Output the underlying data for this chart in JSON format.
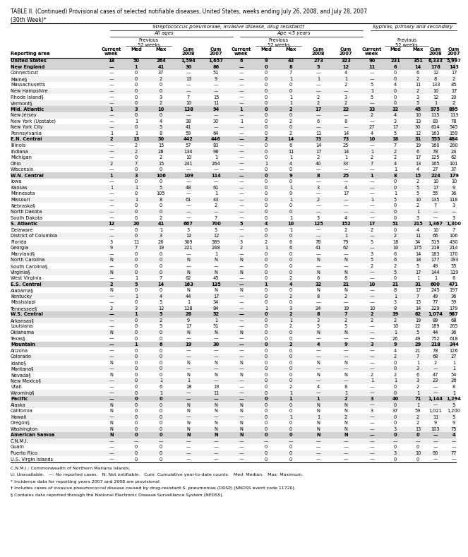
{
  "title_line1": "TABLE II. (Continued) Provisional cases of selected notifiable diseases, United States, weeks ending July 26, 2008, and July 28, 2007",
  "title_line2": "(30th Week)*",
  "col_group1": "Streptococcus pneumoniae, invasive disease, drug resistant†",
  "col_group2": "Syphilis, primary and secondary",
  "rows": [
    [
      "United States",
      "18",
      "50",
      "264",
      "1,594",
      "1,657",
      "6",
      "9",
      "43",
      "273",
      "323",
      "90",
      "231",
      "351",
      "6,333",
      "5,997"
    ],
    [
      "New England",
      "—",
      "1",
      "41",
      "30",
      "86",
      "—",
      "0",
      "8",
      "5",
      "12",
      "11",
      "6",
      "14",
      "176",
      "143"
    ],
    [
      "Connecticut",
      "—",
      "0",
      "37",
      "—",
      "51",
      "—",
      "0",
      "7",
      "—",
      "4",
      "—",
      "0",
      "6",
      "12",
      "17"
    ],
    [
      "Maine§",
      "—",
      "0",
      "2",
      "13",
      "9",
      "—",
      "0",
      "1",
      "1",
      "1",
      "—",
      "0",
      "2",
      "8",
      "2"
    ],
    [
      "Massachusetts",
      "—",
      "0",
      "0",
      "—",
      "—",
      "—",
      "0",
      "0",
      "—",
      "2",
      "5",
      "4",
      "11",
      "133",
      "85"
    ],
    [
      "New Hampshire",
      "—",
      "0",
      "0",
      "—",
      "—",
      "—",
      "0",
      "0",
      "—",
      "—",
      "1",
      "0",
      "2",
      "10",
      "17"
    ],
    [
      "Rhode Island§",
      "—",
      "0",
      "3",
      "7",
      "15",
      "—",
      "0",
      "1",
      "2",
      "3",
      "5",
      "0",
      "3",
      "12",
      "20"
    ],
    [
      "Vermont§",
      "—",
      "0",
      "2",
      "10",
      "11",
      "—",
      "0",
      "1",
      "2",
      "2",
      "—",
      "0",
      "5",
      "1",
      "2"
    ],
    [
      "Mid. Atlantic",
      "1",
      "3",
      "10",
      "138",
      "94",
      "1",
      "0",
      "2",
      "17",
      "22",
      "33",
      "32",
      "45",
      "975",
      "895"
    ],
    [
      "New Jersey",
      "—",
      "0",
      "0",
      "—",
      "—",
      "—",
      "0",
      "0",
      "—",
      "—",
      "2",
      "4",
      "10",
      "115",
      "113"
    ],
    [
      "New York (Upstate)",
      "—",
      "1",
      "4",
      "38",
      "30",
      "1",
      "0",
      "2",
      "6",
      "8",
      "—",
      "3",
      "13",
      "83",
      "78"
    ],
    [
      "New York City",
      "—",
      "0",
      "5",
      "41",
      "—",
      "—",
      "0",
      "0",
      "—",
      "—",
      "27",
      "17",
      "30",
      "614",
      "545"
    ],
    [
      "Pennsylvania",
      "1",
      "1",
      "8",
      "59",
      "64",
      "—",
      "0",
      "2",
      "11",
      "14",
      "4",
      "5",
      "12",
      "163",
      "159"
    ],
    [
      "E.N. Central",
      "2",
      "13",
      "50",
      "442",
      "446",
      "—",
      "2",
      "14",
      "73",
      "73",
      "10",
      "18",
      "31",
      "555",
      "484"
    ],
    [
      "Illinois",
      "—",
      "2",
      "15",
      "57",
      "83",
      "—",
      "0",
      "6",
      "14",
      "25",
      "—",
      "7",
      "19",
      "160",
      "260"
    ],
    [
      "Indiana",
      "—",
      "2",
      "28",
      "134",
      "98",
      "—",
      "0",
      "11",
      "17",
      "14",
      "1",
      "2",
      "6",
      "78",
      "24"
    ],
    [
      "Michigan",
      "—",
      "0",
      "2",
      "10",
      "1",
      "—",
      "0",
      "1",
      "2",
      "1",
      "2",
      "2",
      "17",
      "125",
      "62"
    ],
    [
      "Ohio",
      "2",
      "7",
      "15",
      "241",
      "264",
      "—",
      "1",
      "4",
      "40",
      "33",
      "7",
      "4",
      "13",
      "165",
      "101"
    ],
    [
      "Wisconsin",
      "—",
      "0",
      "0",
      "—",
      "—",
      "—",
      "0",
      "0",
      "—",
      "—",
      "—",
      "1",
      "4",
      "27",
      "37"
    ],
    [
      "W.N. Central",
      "1",
      "3",
      "106",
      "109",
      "114",
      "—",
      "0",
      "9",
      "8",
      "25",
      "1",
      "8",
      "15",
      "224",
      "179"
    ],
    [
      "Iowa",
      "—",
      "0",
      "0",
      "—",
      "—",
      "—",
      "0",
      "0",
      "—",
      "—",
      "—",
      "0",
      "2",
      "10",
      "10"
    ],
    [
      "Kansas",
      "1",
      "1",
      "5",
      "48",
      "61",
      "—",
      "0",
      "1",
      "3",
      "4",
      "—",
      "0",
      "5",
      "17",
      "9"
    ],
    [
      "Minnesota",
      "—",
      "0",
      "105",
      "—",
      "1",
      "—",
      "0",
      "9",
      "—",
      "17",
      "—",
      "1",
      "5",
      "55",
      "36"
    ],
    [
      "Missouri",
      "—",
      "1",
      "8",
      "61",
      "43",
      "—",
      "0",
      "1",
      "2",
      "—",
      "1",
      "5",
      "10",
      "135",
      "118"
    ],
    [
      "Nebraska§",
      "—",
      "0",
      "0",
      "—",
      "2",
      "—",
      "0",
      "0",
      "—",
      "—",
      "—",
      "0",
      "2",
      "7",
      "3"
    ],
    [
      "North Dakota",
      "—",
      "0",
      "0",
      "—",
      "—",
      "—",
      "0",
      "0",
      "—",
      "—",
      "—",
      "0",
      "1",
      "—",
      "—"
    ],
    [
      "South Dakota",
      "—",
      "0",
      "2",
      "—",
      "7",
      "—",
      "0",
      "1",
      "3",
      "4",
      "—",
      "0",
      "3",
      "—",
      "3"
    ],
    [
      "S. Atlantic",
      "12",
      "20",
      "41",
      "667",
      "700",
      "5",
      "4",
      "10",
      "125",
      "152",
      "17",
      "51",
      "215",
      "1,367",
      "1,300"
    ],
    [
      "Delaware",
      "—",
      "0",
      "1",
      "3",
      "5",
      "—",
      "0",
      "1",
      "—",
      "2",
      "2",
      "0",
      "4",
      "10",
      "7"
    ],
    [
      "District of Columbia",
      "—",
      "0",
      "3",
      "12",
      "12",
      "—",
      "0",
      "0",
      "—",
      "1",
      "—",
      "2",
      "11",
      "66",
      "106"
    ],
    [
      "Florida",
      "3",
      "11",
      "26",
      "369",
      "389",
      "3",
      "2",
      "6",
      "78",
      "79",
      "5",
      "18",
      "34",
      "519",
      "430"
    ],
    [
      "Georgia",
      "9",
      "7",
      "19",
      "221",
      "248",
      "2",
      "1",
      "6",
      "41",
      "62",
      "—",
      "10",
      "175",
      "218",
      "214"
    ],
    [
      "Maryland§",
      "—",
      "0",
      "0",
      "—",
      "1",
      "—",
      "0",
      "0",
      "—",
      "—",
      "3",
      "6",
      "14",
      "183",
      "170"
    ],
    [
      "North Carolina",
      "N",
      "0",
      "0",
      "N",
      "N",
      "N",
      "0",
      "0",
      "N",
      "N",
      "5",
      "6",
      "18",
      "177",
      "193"
    ],
    [
      "South Carolina§",
      "—",
      "0",
      "0",
      "—",
      "—",
      "—",
      "0",
      "0",
      "—",
      "—",
      "2",
      "2",
      "5",
      "49",
      "55"
    ],
    [
      "Virginia§",
      "N",
      "0",
      "0",
      "N",
      "N",
      "N",
      "0",
      "0",
      "N",
      "N",
      "—",
      "5",
      "17",
      "144",
      "119"
    ],
    [
      "West Virginia",
      "—",
      "1",
      "7",
      "62",
      "45",
      "—",
      "0",
      "2",
      "6",
      "8",
      "—",
      "0",
      "1",
      "1",
      "6"
    ],
    [
      "E.S. Central",
      "2",
      "5",
      "14",
      "163",
      "135",
      "—",
      "1",
      "4",
      "32",
      "21",
      "10",
      "21",
      "31",
      "600",
      "471"
    ],
    [
      "Alabama§",
      "N",
      "0",
      "0",
      "N",
      "N",
      "N",
      "0",
      "0",
      "N",
      "N",
      "—",
      "8",
      "17",
      "245",
      "197"
    ],
    [
      "Kentucky",
      "—",
      "1",
      "4",
      "44",
      "17",
      "—",
      "0",
      "2",
      "8",
      "2",
      "—",
      "1",
      "7",
      "49",
      "36"
    ],
    [
      "Mississippi",
      "—",
      "0",
      "5",
      "1",
      "34",
      "—",
      "0",
      "0",
      "—",
      "—",
      "—",
      "3",
      "15",
      "77",
      "59"
    ],
    [
      "Tennessee§",
      "2",
      "3",
      "12",
      "118",
      "84",
      "—",
      "1",
      "3",
      "24",
      "19",
      "10",
      "8",
      "14",
      "229",
      "179"
    ],
    [
      "W.S. Central",
      "—",
      "1",
      "5",
      "26",
      "52",
      "—",
      "0",
      "2",
      "8",
      "7",
      "2",
      "39",
      "62",
      "1,074",
      "987"
    ],
    [
      "Arkansas§",
      "—",
      "0",
      "2",
      "9",
      "1",
      "—",
      "0",
      "1",
      "3",
      "2",
      "2",
      "2",
      "19",
      "89",
      "68"
    ],
    [
      "Louisiana",
      "—",
      "0",
      "5",
      "17",
      "51",
      "—",
      "0",
      "2",
      "5",
      "5",
      "—",
      "10",
      "22",
      "189",
      "265"
    ],
    [
      "Oklahoma",
      "N",
      "0",
      "0",
      "N",
      "N",
      "N",
      "0",
      "0",
      "N",
      "N",
      "—",
      "1",
      "5",
      "44",
      "36"
    ],
    [
      "Texas§",
      "—",
      "0",
      "0",
      "—",
      "—",
      "—",
      "0",
      "0",
      "—",
      "—",
      "—",
      "26",
      "49",
      "752",
      "618"
    ],
    [
      "Mountain",
      "—",
      "1",
      "6",
      "19",
      "30",
      "—",
      "0",
      "2",
      "4",
      "9",
      "3",
      "9",
      "29",
      "218",
      "244"
    ],
    [
      "Arizona",
      "—",
      "0",
      "0",
      "—",
      "—",
      "—",
      "0",
      "0",
      "—",
      "—",
      "—",
      "4",
      "21",
      "78",
      "126"
    ],
    [
      "Colorado",
      "—",
      "0",
      "0",
      "—",
      "—",
      "—",
      "0",
      "0",
      "—",
      "—",
      "—",
      "2",
      "7",
      "68",
      "27"
    ],
    [
      "Idaho§",
      "N",
      "0",
      "0",
      "N",
      "N",
      "N",
      "0",
      "0",
      "N",
      "N",
      "—",
      "0",
      "1",
      "2",
      "1"
    ],
    [
      "Montana§",
      "—",
      "0",
      "0",
      "—",
      "—",
      "—",
      "0",
      "0",
      "—",
      "—",
      "—",
      "0",
      "3",
      "—",
      "1"
    ],
    [
      "Nevada§",
      "N",
      "0",
      "0",
      "N",
      "N",
      "N",
      "0",
      "0",
      "N",
      "N",
      "2",
      "2",
      "6",
      "47",
      "54"
    ],
    [
      "New Mexico§",
      "—",
      "0",
      "1",
      "1",
      "—",
      "—",
      "0",
      "0",
      "—",
      "—",
      "1",
      "1",
      "3",
      "23",
      "26"
    ],
    [
      "Utah",
      "—",
      "0",
      "6",
      "18",
      "19",
      "—",
      "0",
      "2",
      "4",
      "8",
      "—",
      "0",
      "2",
      "—",
      "8"
    ],
    [
      "Wyoming§",
      "—",
      "0",
      "1",
      "—",
      "11",
      "—",
      "0",
      "1",
      "—",
      "1",
      "—",
      "0",
      "1",
      "—",
      "1"
    ],
    [
      "Pacific",
      "—",
      "0",
      "0",
      "—",
      "—",
      "—",
      "0",
      "1",
      "1",
      "2",
      "3",
      "40",
      "71",
      "1,144",
      "1,294"
    ],
    [
      "Alaska",
      "N",
      "0",
      "0",
      "N",
      "N",
      "N",
      "0",
      "0",
      "N",
      "N",
      "—",
      "0",
      "1",
      "—",
      "5"
    ],
    [
      "California",
      "N",
      "0",
      "0",
      "N",
      "N",
      "N",
      "0",
      "0",
      "N",
      "N",
      "3",
      "37",
      "59",
      "1,021",
      "1,200"
    ],
    [
      "Hawaii",
      "—",
      "0",
      "0",
      "—",
      "—",
      "—",
      "0",
      "1",
      "1",
      "2",
      "—",
      "0",
      "2",
      "11",
      "5"
    ],
    [
      "Oregon§",
      "N",
      "0",
      "0",
      "N",
      "N",
      "N",
      "0",
      "0",
      "N",
      "N",
      "—",
      "0",
      "2",
      "9",
      "9"
    ],
    [
      "Washington",
      "N",
      "0",
      "0",
      "N",
      "N",
      "N",
      "0",
      "0",
      "N",
      "N",
      "—",
      "3",
      "13",
      "103",
      "75"
    ],
    [
      "American Samoa",
      "N",
      "0",
      "0",
      "N",
      "N",
      "N",
      "0",
      "0",
      "N",
      "N",
      "—",
      "0",
      "0",
      "—",
      "4"
    ],
    [
      "C.N.M.I.",
      "—",
      "—",
      "—",
      "—",
      "—",
      "—",
      "—",
      "—",
      "—",
      "—",
      "—",
      "—",
      "—",
      "—",
      "—"
    ],
    [
      "Guam",
      "—",
      "0",
      "0",
      "—",
      "—",
      "—",
      "0",
      "0",
      "—",
      "—",
      "—",
      "0",
      "0",
      "—",
      "—"
    ],
    [
      "Puerto Rico",
      "—",
      "0",
      "0",
      "—",
      "—",
      "—",
      "0",
      "0",
      "—",
      "—",
      "—",
      "3",
      "10",
      "90",
      "77"
    ],
    [
      "U.S. Virgin Islands",
      "—",
      "0",
      "0",
      "—",
      "—",
      "—",
      "0",
      "0",
      "—",
      "—",
      "—",
      "0",
      "0",
      "—",
      "—"
    ]
  ],
  "bold_rows": [
    0,
    1,
    8,
    13,
    19,
    27,
    37,
    42,
    47,
    56,
    62
  ],
  "footnotes": [
    "C.N.M.I.: Commonwealth of Northern Mariana Islands.",
    "U: Unavailable.   —: No reported cases.   N: Not notifiable.   Cum: Cumulative year-to-date counts.   Med: Median.   Max: Maximum.",
    "* Incidence data for reporting years 2007 and 2008 are provisional.",
    "† Includes cases of invasive pneumococcal disease caused by drug-resistant S. pneumoniae (DRSP) (NNDSS event code 11720).",
    "§ Contains data reported through the National Electronic Disease Surveillance System (NEDSS)."
  ]
}
